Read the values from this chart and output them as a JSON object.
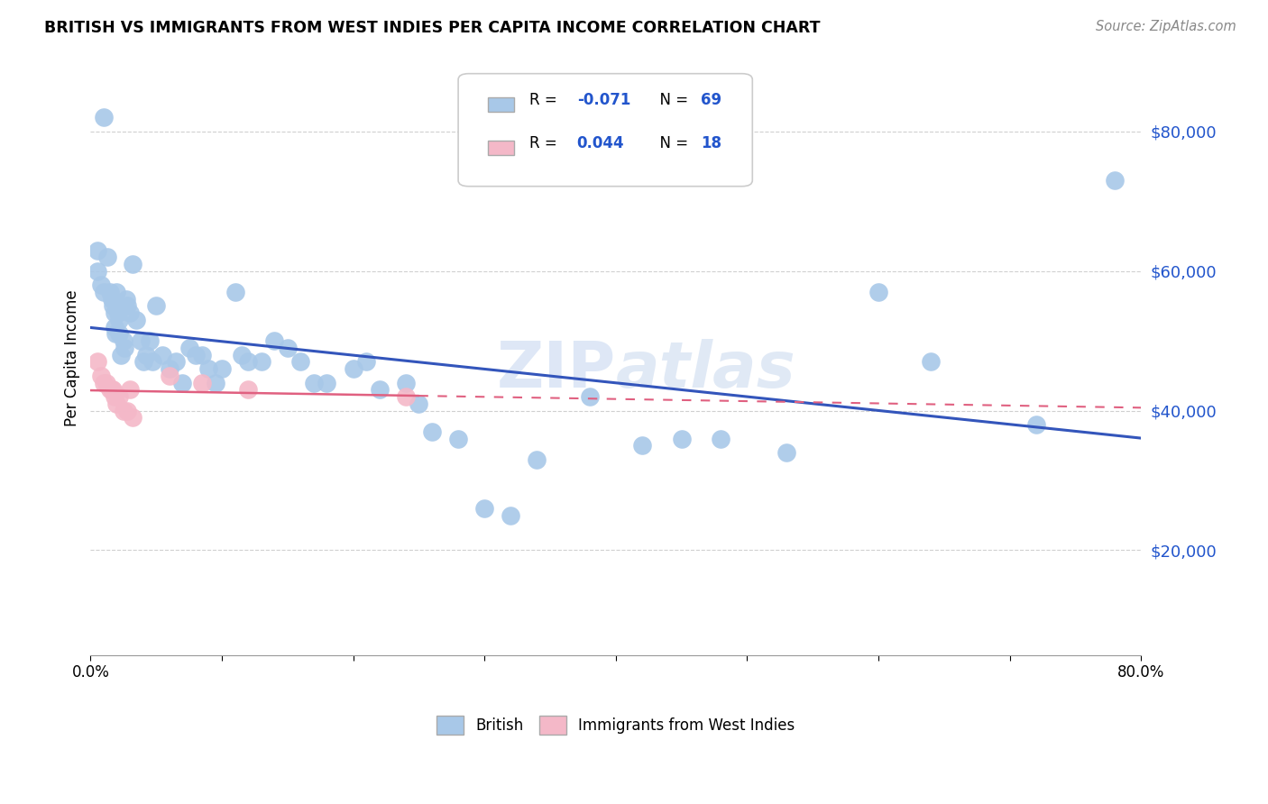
{
  "title": "BRITISH VS IMMIGRANTS FROM WEST INDIES PER CAPITA INCOME CORRELATION CHART",
  "source": "Source: ZipAtlas.com",
  "ylabel": "Per Capita Income",
  "xlim": [
    0.0,
    0.8
  ],
  "ylim": [
    5000,
    90000
  ],
  "yticks": [
    20000,
    40000,
    60000,
    80000
  ],
  "ytick_labels": [
    "$20,000",
    "$40,000",
    "$60,000",
    "$80,000"
  ],
  "xticks": [
    0.0,
    0.1,
    0.2,
    0.3,
    0.4,
    0.5,
    0.6,
    0.7,
    0.8
  ],
  "xtick_labels": [
    "0.0%",
    "",
    "",
    "",
    "",
    "",
    "",
    "",
    "80.0%"
  ],
  "british_R": -0.071,
  "british_N": 69,
  "westindies_R": 0.044,
  "westindies_N": 18,
  "british_color": "#a8c8e8",
  "westindies_color": "#f4b8c8",
  "british_line_color": "#3355bb",
  "westindies_line_color": "#e06080",
  "legend_british_label": "British",
  "legend_westindies_label": "Immigrants from West Indies",
  "watermark": "ZIP atlas",
  "british_x": [
    0.005,
    0.005,
    0.008,
    0.01,
    0.01,
    0.013,
    0.015,
    0.016,
    0.017,
    0.018,
    0.018,
    0.019,
    0.02,
    0.02,
    0.021,
    0.022,
    0.022,
    0.023,
    0.025,
    0.026,
    0.027,
    0.028,
    0.03,
    0.032,
    0.035,
    0.038,
    0.04,
    0.042,
    0.045,
    0.047,
    0.05,
    0.055,
    0.06,
    0.065,
    0.07,
    0.075,
    0.08,
    0.085,
    0.09,
    0.095,
    0.1,
    0.11,
    0.115,
    0.12,
    0.13,
    0.14,
    0.15,
    0.16,
    0.17,
    0.18,
    0.2,
    0.21,
    0.22,
    0.24,
    0.25,
    0.26,
    0.28,
    0.3,
    0.32,
    0.34,
    0.38,
    0.42,
    0.45,
    0.48,
    0.53,
    0.6,
    0.64,
    0.72,
    0.78
  ],
  "british_y": [
    63000,
    60000,
    58000,
    82000,
    57000,
    62000,
    57000,
    56000,
    55000,
    54000,
    52000,
    51000,
    57000,
    55000,
    54000,
    53000,
    51000,
    48000,
    50000,
    49000,
    56000,
    55000,
    54000,
    61000,
    53000,
    50000,
    47000,
    48000,
    50000,
    47000,
    55000,
    48000,
    46000,
    47000,
    44000,
    49000,
    48000,
    48000,
    46000,
    44000,
    46000,
    57000,
    48000,
    47000,
    47000,
    50000,
    49000,
    47000,
    44000,
    44000,
    46000,
    47000,
    43000,
    44000,
    41000,
    37000,
    36000,
    26000,
    25000,
    33000,
    42000,
    35000,
    36000,
    36000,
    34000,
    57000,
    47000,
    38000,
    73000
  ],
  "westindies_x": [
    0.005,
    0.008,
    0.01,
    0.012,
    0.015,
    0.016,
    0.017,
    0.018,
    0.02,
    0.022,
    0.025,
    0.028,
    0.03,
    0.032,
    0.06,
    0.085,
    0.12,
    0.24
  ],
  "westindies_y": [
    47000,
    45000,
    44000,
    44000,
    43000,
    43000,
    43000,
    42000,
    41000,
    42000,
    40000,
    40000,
    43000,
    39000,
    45000,
    44000,
    43000,
    42000
  ]
}
